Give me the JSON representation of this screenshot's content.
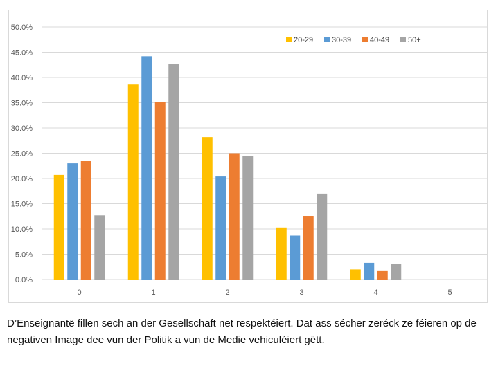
{
  "chart_data": {
    "type": "bar",
    "categories": [
      "0",
      "1",
      "2",
      "3",
      "4",
      "5"
    ],
    "series": [
      {
        "name": "20-29",
        "color": "#FFC000",
        "values": [
          20.7,
          38.6,
          28.2,
          10.3,
          2.0,
          0
        ]
      },
      {
        "name": "30-39",
        "color": "#5B9BD5",
        "values": [
          23.0,
          44.2,
          20.4,
          8.7,
          3.3,
          0
        ]
      },
      {
        "name": "40-49",
        "color": "#ED7D31",
        "values": [
          23.5,
          35.2,
          25.0,
          12.6,
          1.8,
          0
        ]
      },
      {
        "name": "50+",
        "color": "#A5A5A5",
        "values": [
          12.7,
          42.6,
          24.4,
          17.0,
          3.1,
          0
        ]
      }
    ],
    "y_ticks": [
      "0.0%",
      "5.0%",
      "10.0%",
      "15.0%",
      "20.0%",
      "25.0%",
      "30.0%",
      "35.0%",
      "40.0%",
      "45.0%",
      "50.0%"
    ],
    "ylim": [
      0,
      50
    ],
    "grid": true,
    "legend_position": "top-right"
  },
  "caption": "D’Enseignantë fillen sech an der Gesellschaft net respektéiert. Dat ass sécher zeréck ze féieren op de negativen Image dee vun der Politik a vun de Medie vehiculéiert gëtt."
}
